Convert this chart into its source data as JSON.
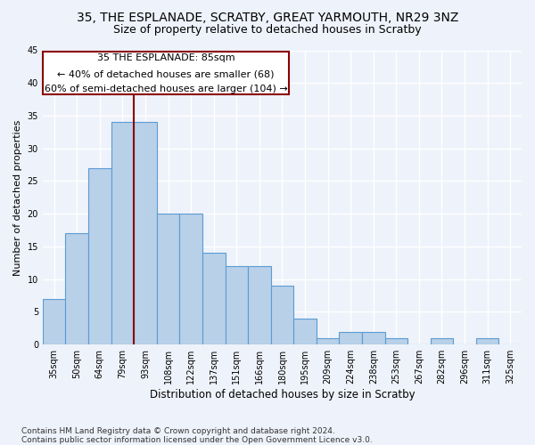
{
  "title_line1": "35, THE ESPLANADE, SCRATBY, GREAT YARMOUTH, NR29 3NZ",
  "title_line2": "Size of property relative to detached houses in Scratby",
  "xlabel": "Distribution of detached houses by size in Scratby",
  "ylabel": "Number of detached properties",
  "categories": [
    "35sqm",
    "50sqm",
    "64sqm",
    "79sqm",
    "93sqm",
    "108sqm",
    "122sqm",
    "137sqm",
    "151sqm",
    "166sqm",
    "180sqm",
    "195sqm",
    "209sqm",
    "224sqm",
    "238sqm",
    "253sqm",
    "267sqm",
    "282sqm",
    "296sqm",
    "311sqm",
    "325sqm"
  ],
  "values": [
    7,
    17,
    27,
    34,
    34,
    20,
    20,
    14,
    12,
    12,
    9,
    4,
    1,
    2,
    2,
    1,
    0,
    1,
    0,
    1,
    0
  ],
  "bar_color": "#b8d0e8",
  "bar_edge_color": "#5b9bd5",
  "vline_x": 3.5,
  "vline_color": "#8b0000",
  "annotation_line1": "35 THE ESPLANADE: 85sqm",
  "annotation_line2": "← 40% of detached houses are smaller (68)",
  "annotation_line3": "60% of semi-detached houses are larger (104) →",
  "annotation_box_color": "#ffffff",
  "annotation_box_edge": "#8b0000",
  "ylim": [
    0,
    45
  ],
  "yticks": [
    0,
    5,
    10,
    15,
    20,
    25,
    30,
    35,
    40,
    45
  ],
  "footer_line1": "Contains HM Land Registry data © Crown copyright and database right 2024.",
  "footer_line2": "Contains public sector information licensed under the Open Government Licence v3.0.",
  "background_color": "#eef2fa",
  "grid_color": "#ffffff",
  "title1_fontsize": 10,
  "title2_fontsize": 9,
  "xlabel_fontsize": 8.5,
  "ylabel_fontsize": 8,
  "tick_fontsize": 7,
  "annotation_fontsize": 8,
  "footer_fontsize": 6.5
}
